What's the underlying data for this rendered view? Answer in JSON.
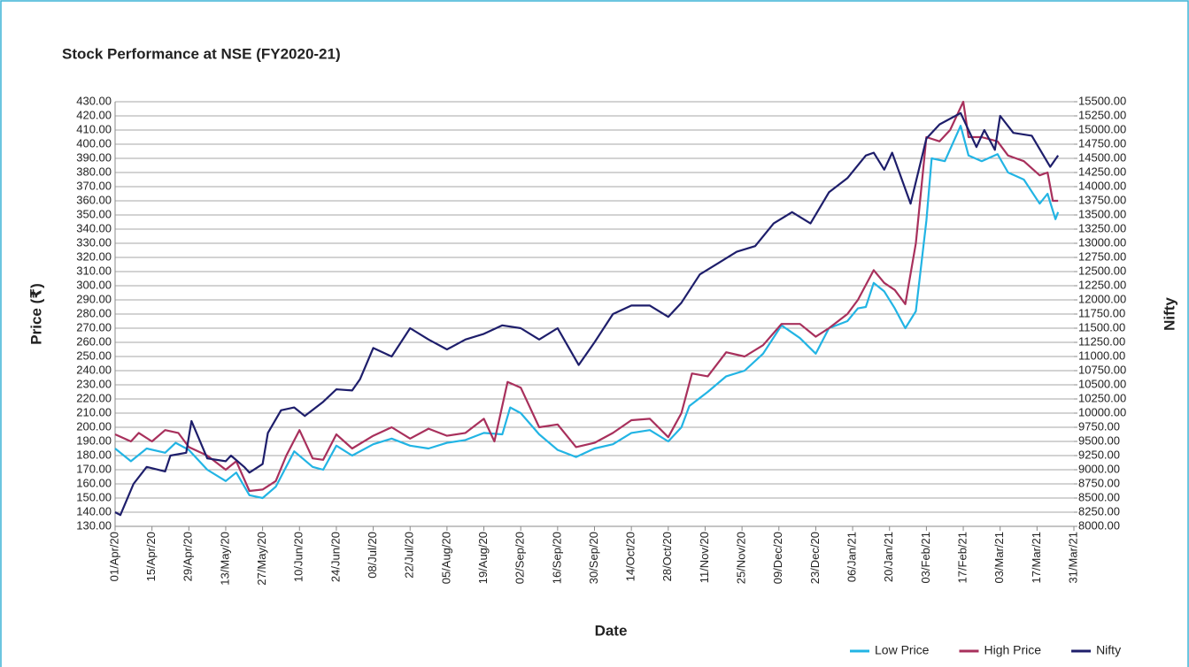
{
  "chart_data": {
    "type": "line",
    "title": "Stock Performance at NSE (FY2020-21)",
    "x_label": "Date",
    "y_label": "Price (₹)",
    "y2_label": "Nifty",
    "legend": "bottom-right",
    "grid": true,
    "xlim": [
      "2020-04-01",
      "2021-03-31"
    ],
    "xticks": [
      {
        "value": "2020-04-01",
        "label": "01/Apr/20"
      },
      {
        "value": "2020-04-15",
        "label": "15/Apr/20"
      },
      {
        "value": "2020-04-29",
        "label": "29/Apr/20"
      },
      {
        "value": "2020-05-13",
        "label": "13/May/20"
      },
      {
        "value": "2020-05-27",
        "label": "27/May/20"
      },
      {
        "value": "2020-06-10",
        "label": "10/Jun/20"
      },
      {
        "value": "2020-06-24",
        "label": "24/Jun/20"
      },
      {
        "value": "2020-07-08",
        "label": "08/Jul/20"
      },
      {
        "value": "2020-07-22",
        "label": "22/Jul/20"
      },
      {
        "value": "2020-08-05",
        "label": "05/Aug/20"
      },
      {
        "value": "2020-08-19",
        "label": "19/Aug/20"
      },
      {
        "value": "2020-09-02",
        "label": "02/Sep/20"
      },
      {
        "value": "2020-09-16",
        "label": "16/Sep/20"
      },
      {
        "value": "2020-09-30",
        "label": "30/Sep/20"
      },
      {
        "value": "2020-10-14",
        "label": "14/Oct/20"
      },
      {
        "value": "2020-10-28",
        "label": "28/Oct/20"
      },
      {
        "value": "2020-11-11",
        "label": "11/Nov/20"
      },
      {
        "value": "2020-11-25",
        "label": "25/Nov/20"
      },
      {
        "value": "2020-12-09",
        "label": "09/Dec/20"
      },
      {
        "value": "2020-12-23",
        "label": "23/Dec/20"
      },
      {
        "value": "2021-01-06",
        "label": "06/Jan/21"
      },
      {
        "value": "2021-01-20",
        "label": "20/Jan/21"
      },
      {
        "value": "2021-02-03",
        "label": "03/Feb/21"
      },
      {
        "value": "2021-02-17",
        "label": "17/Feb/21"
      },
      {
        "value": "2021-03-03",
        "label": "03/Mar/21"
      },
      {
        "value": "2021-03-17",
        "label": "17/Mar/21"
      },
      {
        "value": "2021-03-31",
        "label": "31/Mar/21"
      }
    ],
    "ylim": [
      130,
      430
    ],
    "yticks": [
      {
        "value": 130,
        "label": "130.00"
      },
      {
        "value": 140,
        "label": "140.00"
      },
      {
        "value": 150,
        "label": "150.00"
      },
      {
        "value": 160,
        "label": "160.00"
      },
      {
        "value": 170,
        "label": "170.00"
      },
      {
        "value": 180,
        "label": "180.00"
      },
      {
        "value": 190,
        "label": "190.00"
      },
      {
        "value": 200,
        "label": "200.00"
      },
      {
        "value": 210,
        "label": "210.00"
      },
      {
        "value": 220,
        "label": "220.00"
      },
      {
        "value": 230,
        "label": "230.00"
      },
      {
        "value": 240,
        "label": "240.00"
      },
      {
        "value": 250,
        "label": "250.00"
      },
      {
        "value": 260,
        "label": "260.00"
      },
      {
        "value": 270,
        "label": "270.00"
      },
      {
        "value": 280,
        "label": "280.00"
      },
      {
        "value": 290,
        "label": "290.00"
      },
      {
        "value": 300,
        "label": "300.00"
      },
      {
        "value": 310,
        "label": "310.00"
      },
      {
        "value": 320,
        "label": "320.00"
      },
      {
        "value": 330,
        "label": "330.00"
      },
      {
        "value": 340,
        "label": "340.00"
      },
      {
        "value": 350,
        "label": "350.00"
      },
      {
        "value": 360,
        "label": "360.00"
      },
      {
        "value": 370,
        "label": "370.00"
      },
      {
        "value": 380,
        "label": "380.00"
      },
      {
        "value": 390,
        "label": "390.00"
      },
      {
        "value": 400,
        "label": "400.00"
      },
      {
        "value": 410,
        "label": "410.00"
      },
      {
        "value": 420,
        "label": "420.00"
      },
      {
        "value": 430,
        "label": "430.00"
      }
    ],
    "y2lim": [
      8000,
      15500
    ],
    "y2ticks": [
      {
        "value": 8000,
        "label": "8000.00"
      },
      {
        "value": 8250,
        "label": "8250.00"
      },
      {
        "value": 8500,
        "label": "8500.00"
      },
      {
        "value": 8750,
        "label": "8750.00"
      },
      {
        "value": 9000,
        "label": "9000.00"
      },
      {
        "value": 9250,
        "label": "9250.00"
      },
      {
        "value": 9500,
        "label": "9500.00"
      },
      {
        "value": 9750,
        "label": "9750.00"
      },
      {
        "value": 10000,
        "label": "10000.00"
      },
      {
        "value": 10250,
        "label": "10250.00"
      },
      {
        "value": 10500,
        "label": "10500.00"
      },
      {
        "value": 10750,
        "label": "10750.00"
      },
      {
        "value": 11000,
        "label": "11000.00"
      },
      {
        "value": 11250,
        "label": "11250.00"
      },
      {
        "value": 11500,
        "label": "11500.00"
      },
      {
        "value": 11750,
        "label": "11750.00"
      },
      {
        "value": 12000,
        "label": "12000.00"
      },
      {
        "value": 12250,
        "label": "12250.00"
      },
      {
        "value": 12500,
        "label": "12500.00"
      },
      {
        "value": 12750,
        "label": "12750.00"
      },
      {
        "value": 13000,
        "label": "13000.00"
      },
      {
        "value": 13250,
        "label": "13250.00"
      },
      {
        "value": 13500,
        "label": "13500.00"
      },
      {
        "value": 13750,
        "label": "13750.00"
      },
      {
        "value": 14000,
        "label": "14000.00"
      },
      {
        "value": 14250,
        "label": "14250.00"
      },
      {
        "value": 14500,
        "label": "14500.00"
      },
      {
        "value": 14750,
        "label": "14750.00"
      },
      {
        "value": 15000,
        "label": "15000.00"
      },
      {
        "value": 15250,
        "label": "15250.00"
      },
      {
        "value": 15500,
        "label": "15500.00"
      }
    ],
    "series": [
      {
        "name": "Low Price",
        "color": "#22b4e4",
        "axis": "y",
        "x": [
          "2020-04-01",
          "2020-04-07",
          "2020-04-13",
          "2020-04-20",
          "2020-04-24",
          "2020-04-29",
          "2020-05-06",
          "2020-05-13",
          "2020-05-17",
          "2020-05-22",
          "2020-05-27",
          "2020-06-01",
          "2020-06-08",
          "2020-06-15",
          "2020-06-19",
          "2020-06-24",
          "2020-06-30",
          "2020-07-08",
          "2020-07-15",
          "2020-07-22",
          "2020-07-29",
          "2020-08-05",
          "2020-08-12",
          "2020-08-19",
          "2020-08-26",
          "2020-08-29",
          "2020-09-02",
          "2020-09-09",
          "2020-09-16",
          "2020-09-23",
          "2020-09-30",
          "2020-10-07",
          "2020-10-14",
          "2020-10-21",
          "2020-10-28",
          "2020-11-02",
          "2020-11-05",
          "2020-11-12",
          "2020-11-19",
          "2020-11-26",
          "2020-12-03",
          "2020-12-10",
          "2020-12-17",
          "2020-12-23",
          "2020-12-28",
          "2021-01-04",
          "2021-01-08",
          "2021-01-11",
          "2021-01-14",
          "2021-01-18",
          "2021-01-22",
          "2021-01-26",
          "2021-01-30",
          "2021-02-03",
          "2021-02-05",
          "2021-02-10",
          "2021-02-16",
          "2021-02-19",
          "2021-02-24",
          "2021-03-02",
          "2021-03-06",
          "2021-03-12",
          "2021-03-18",
          "2021-03-21",
          "2021-03-24",
          "2021-03-25"
        ],
        "values": [
          185,
          176,
          185,
          182,
          189,
          184,
          170,
          162,
          168,
          152,
          150,
          158,
          183,
          172,
          170,
          187,
          180,
          188,
          192,
          187,
          185,
          189,
          191,
          196,
          195,
          214,
          210,
          195,
          184,
          179,
          185,
          188,
          196,
          198,
          190,
          200,
          215,
          225,
          236,
          240,
          252,
          272,
          263,
          252,
          270,
          275,
          284,
          285,
          302,
          296,
          284,
          270,
          282,
          346,
          390,
          388,
          413,
          392,
          388,
          393,
          380,
          375,
          358,
          365,
          347,
          352
        ]
      },
      {
        "name": "High Price",
        "color": "#a8305c",
        "axis": "y",
        "x": [
          "2020-04-01",
          "2020-04-07",
          "2020-04-10",
          "2020-04-15",
          "2020-04-20",
          "2020-04-25",
          "2020-04-29",
          "2020-05-06",
          "2020-05-13",
          "2020-05-17",
          "2020-05-22",
          "2020-05-27",
          "2020-06-01",
          "2020-06-05",
          "2020-06-10",
          "2020-06-15",
          "2020-06-19",
          "2020-06-24",
          "2020-06-30",
          "2020-07-08",
          "2020-07-15",
          "2020-07-22",
          "2020-07-29",
          "2020-08-05",
          "2020-08-12",
          "2020-08-19",
          "2020-08-23",
          "2020-08-28",
          "2020-09-02",
          "2020-09-09",
          "2020-09-16",
          "2020-09-23",
          "2020-09-30",
          "2020-10-07",
          "2020-10-14",
          "2020-10-21",
          "2020-10-28",
          "2020-11-02",
          "2020-11-06",
          "2020-11-12",
          "2020-11-19",
          "2020-11-26",
          "2020-12-03",
          "2020-12-10",
          "2020-12-17",
          "2020-12-23",
          "2020-12-28",
          "2021-01-04",
          "2021-01-08",
          "2021-01-14",
          "2021-01-18",
          "2021-01-22",
          "2021-01-26",
          "2021-01-30",
          "2021-02-03",
          "2021-02-08",
          "2021-02-12",
          "2021-02-17",
          "2021-02-19",
          "2021-02-24",
          "2021-03-02",
          "2021-03-06",
          "2021-03-12",
          "2021-03-18",
          "2021-03-21",
          "2021-03-23",
          "2021-03-25"
        ],
        "values": [
          195,
          190,
          196,
          190,
          198,
          196,
          186,
          180,
          170,
          176,
          155,
          156,
          162,
          180,
          198,
          178,
          177,
          195,
          185,
          194,
          200,
          192,
          199,
          194,
          196,
          206,
          190,
          232,
          228,
          200,
          202,
          186,
          189,
          196,
          205,
          206,
          193,
          210,
          238,
          236,
          253,
          250,
          258,
          273,
          273,
          264,
          270,
          280,
          290,
          311,
          302,
          297,
          287,
          330,
          405,
          402,
          410,
          430,
          405,
          405,
          402,
          392,
          388,
          378,
          380,
          360,
          360
        ]
      },
      {
        "name": "Nifty",
        "color": "#1e1e6b",
        "axis": "y2",
        "x": [
          "2020-04-01",
          "2020-04-03",
          "2020-04-08",
          "2020-04-13",
          "2020-04-20",
          "2020-04-22",
          "2020-04-28",
          "2020-04-30",
          "2020-05-06",
          "2020-05-13",
          "2020-05-15",
          "2020-05-20",
          "2020-05-22",
          "2020-05-27",
          "2020-05-29",
          "2020-06-03",
          "2020-06-08",
          "2020-06-12",
          "2020-06-19",
          "2020-06-24",
          "2020-06-30",
          "2020-07-03",
          "2020-07-08",
          "2020-07-15",
          "2020-07-22",
          "2020-07-29",
          "2020-08-05",
          "2020-08-12",
          "2020-08-19",
          "2020-08-26",
          "2020-09-02",
          "2020-09-09",
          "2020-09-16",
          "2020-09-24",
          "2020-09-30",
          "2020-10-07",
          "2020-10-14",
          "2020-10-21",
          "2020-10-28",
          "2020-11-02",
          "2020-11-09",
          "2020-11-16",
          "2020-11-23",
          "2020-11-30",
          "2020-12-07",
          "2020-12-14",
          "2020-12-21",
          "2020-12-28",
          "2021-01-04",
          "2021-01-11",
          "2021-01-14",
          "2021-01-18",
          "2021-01-21",
          "2021-01-28",
          "2021-02-03",
          "2021-02-08",
          "2021-02-16",
          "2021-02-22",
          "2021-02-25",
          "2021-03-01",
          "2021-03-03",
          "2021-03-08",
          "2021-03-15",
          "2021-03-22",
          "2021-03-25"
        ],
        "values": [
          8250,
          8200,
          8750,
          9050,
          8970,
          9250,
          9300,
          9860,
          9200,
          9150,
          9250,
          9050,
          8950,
          9100,
          9650,
          10050,
          10100,
          9950,
          10200,
          10420,
          10400,
          10600,
          11150,
          11000,
          11500,
          11300,
          11125,
          11300,
          11400,
          11550,
          11500,
          11300,
          11500,
          10850,
          11250,
          11750,
          11900,
          11900,
          11700,
          11950,
          12450,
          12650,
          12850,
          12950,
          13350,
          13550,
          13350,
          13900,
          14150,
          14550,
          14600,
          14300,
          14600,
          13700,
          14850,
          15100,
          15300,
          14700,
          15000,
          14650,
          15250,
          14950,
          14900,
          14350,
          14550
        ]
      }
    ]
  }
}
